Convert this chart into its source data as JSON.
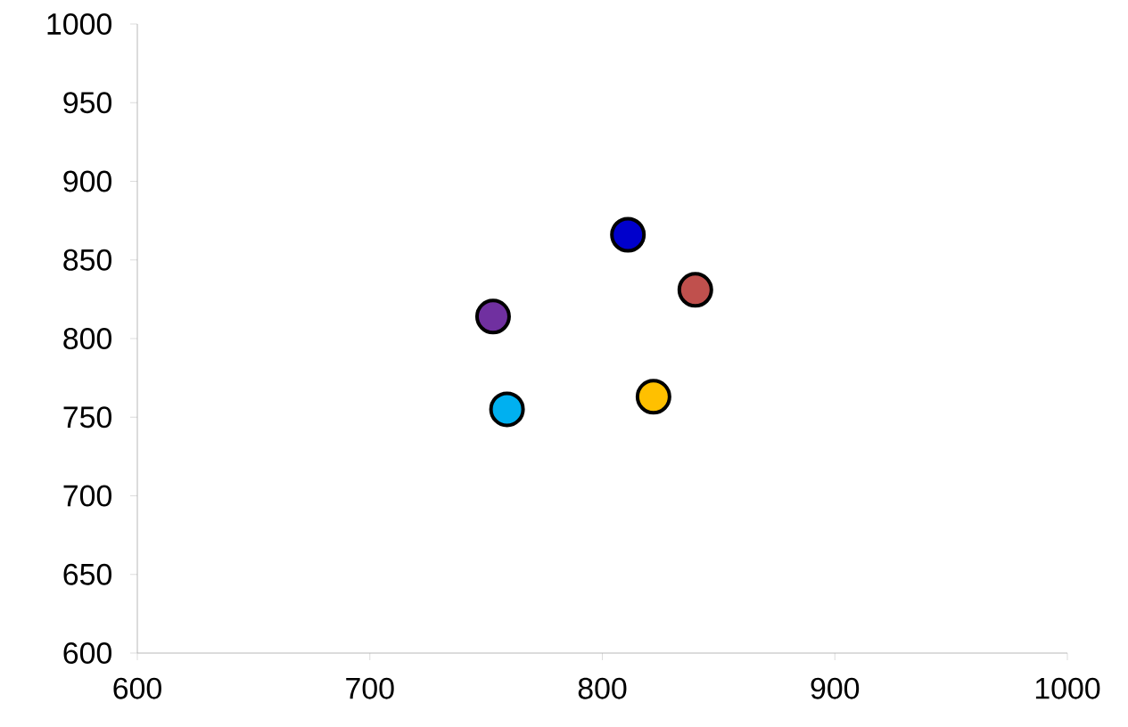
{
  "chart_data": {
    "type": "scatter",
    "x": [
      811,
      840,
      753,
      759,
      822
    ],
    "values": [
      866,
      831,
      814,
      755,
      763
    ],
    "colors": [
      "#0000cc",
      "#c0504d",
      "#7030a0",
      "#00b0f0",
      "#ffc000"
    ],
    "xlim": [
      600,
      1000
    ],
    "xticks": [
      600,
      700,
      800,
      900,
      1000
    ],
    "ylim": [
      600,
      1000
    ],
    "yticks": [
      600,
      650,
      700,
      750,
      800,
      850,
      900,
      950,
      1000
    ],
    "marker": "circle",
    "grid": false
  }
}
